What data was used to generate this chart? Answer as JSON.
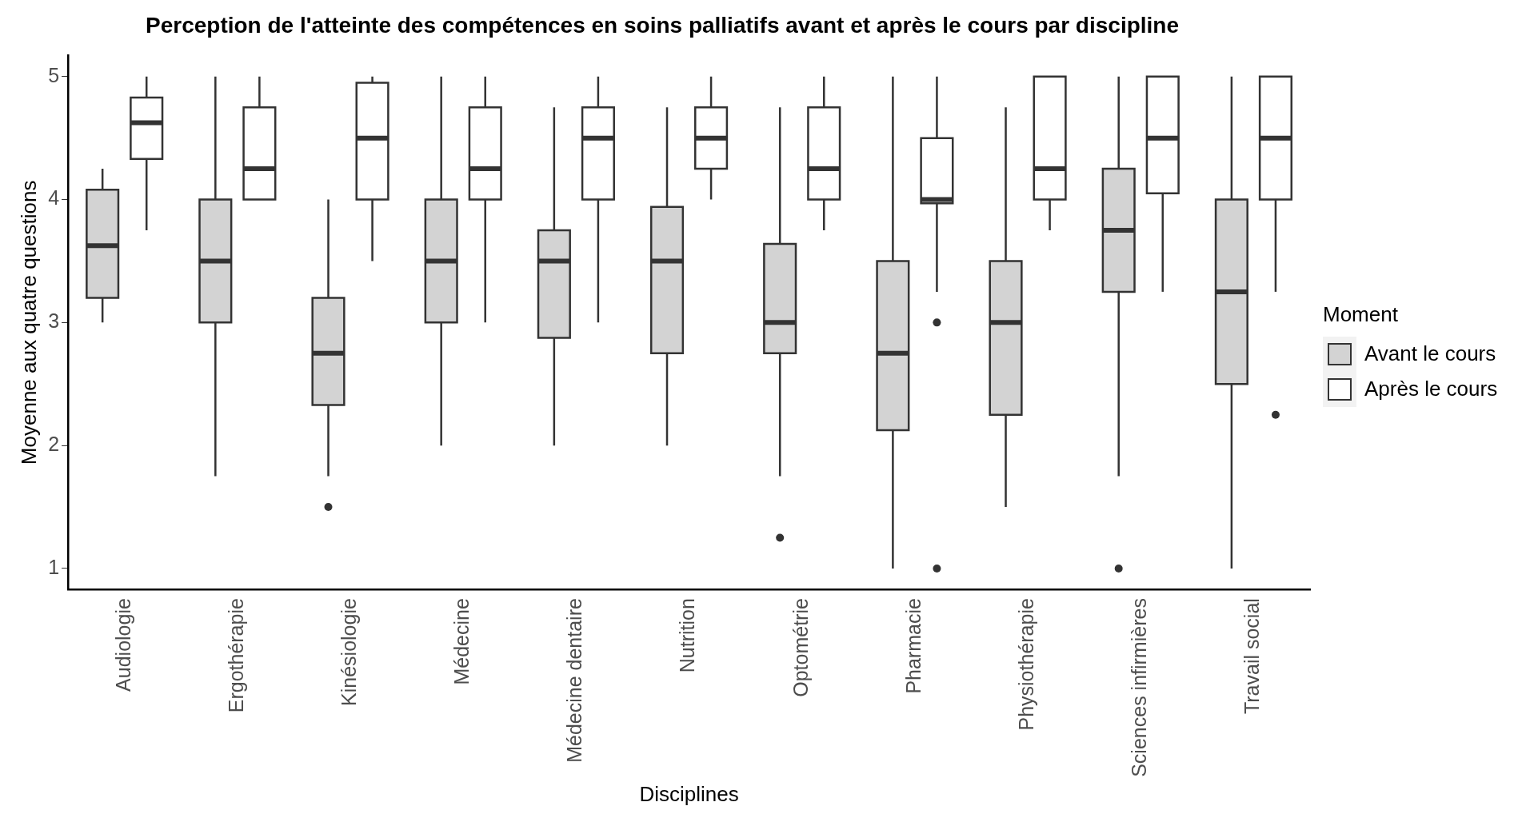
{
  "chart_data": {
    "type": "box",
    "title": "Perception de l'atteinte des compétences en soins palliatifs avant et après le cours par discipline",
    "xlabel": "Disciplines",
    "ylabel": "Moyenne aux quatre questions",
    "legend_title": "Moment",
    "legend": "right",
    "grid": false,
    "categories": [
      "Audiologie",
      "Ergothérapie",
      "Kinésiologie",
      "Médecine",
      "Médecine dentaire",
      "Nutrition",
      "Optométrie",
      "Pharmacie",
      "Physiothérapie",
      "Sciences infirmières",
      "Travail social"
    ],
    "ylim": [
      0.83,
      5.17
    ],
    "yticks": [
      1,
      2,
      3,
      4,
      5
    ],
    "series": [
      {
        "name": "Avant le cours",
        "color": "#d3d3d3",
        "boxes": [
          {
            "low": 3,
            "q1": 3.2,
            "median": 3.625,
            "q3": 4.08,
            "high": 4.25
          },
          {
            "low": 1.75,
            "q1": 3,
            "median": 3.5,
            "q3": 4,
            "high": 5
          },
          {
            "low": 1.75,
            "q1": 2.33,
            "median": 2.75,
            "q3": 3.2,
            "high": 4,
            "outliers": [
              1.5
            ]
          },
          {
            "low": 2,
            "q1": 3,
            "median": 3.5,
            "q3": 4,
            "high": 5
          },
          {
            "low": 2,
            "q1": 2.875,
            "median": 3.5,
            "q3": 3.75,
            "high": 4.75
          },
          {
            "low": 2,
            "q1": 2.75,
            "median": 3.5,
            "q3": 3.94,
            "high": 4.75
          },
          {
            "low": 1.75,
            "q1": 2.75,
            "median": 3,
            "q3": 3.64,
            "high": 4.75,
            "outliers": [
              1.25
            ]
          },
          {
            "low": 1,
            "q1": 2.125,
            "median": 2.75,
            "q3": 3.5,
            "high": 5
          },
          {
            "low": 1.5,
            "q1": 2.25,
            "median": 3,
            "q3": 3.5,
            "high": 4.75
          },
          {
            "low": 1.75,
            "q1": 3.25,
            "median": 3.75,
            "q3": 4.25,
            "high": 5,
            "outliers": [
              1
            ]
          },
          {
            "low": 1,
            "q1": 2.5,
            "median": 3.25,
            "q3": 4,
            "high": 5
          }
        ]
      },
      {
        "name": "Après le cours",
        "color": "#ffffff",
        "boxes": [
          {
            "low": 3.75,
            "q1": 4.33,
            "median": 4.625,
            "q3": 4.83,
            "high": 5
          },
          {
            "low": 4,
            "q1": 4,
            "median": 4.25,
            "q3": 4.75,
            "high": 5
          },
          {
            "low": 3.5,
            "q1": 4,
            "median": 4.5,
            "q3": 4.95,
            "high": 5
          },
          {
            "low": 3,
            "q1": 4,
            "median": 4.25,
            "q3": 4.75,
            "high": 5
          },
          {
            "low": 3,
            "q1": 4,
            "median": 4.5,
            "q3": 4.75,
            "high": 5
          },
          {
            "low": 4,
            "q1": 4.25,
            "median": 4.5,
            "q3": 4.75,
            "high": 5
          },
          {
            "low": 3.75,
            "q1": 4,
            "median": 4.25,
            "q3": 4.75,
            "high": 5
          },
          {
            "low": 3.25,
            "q1": 3.97,
            "median": 4,
            "q3": 4.5,
            "high": 5,
            "outliers": [
              3,
              1
            ]
          },
          {
            "low": 3.75,
            "q1": 4,
            "median": 4.25,
            "q3": 5,
            "high": 5
          },
          {
            "low": 3.25,
            "q1": 4.05,
            "median": 4.5,
            "q3": 5,
            "high": 5
          },
          {
            "low": 3.25,
            "q1": 4,
            "median": 4.5,
            "q3": 5,
            "high": 5,
            "outliers": [
              2.25
            ]
          }
        ]
      }
    ]
  }
}
